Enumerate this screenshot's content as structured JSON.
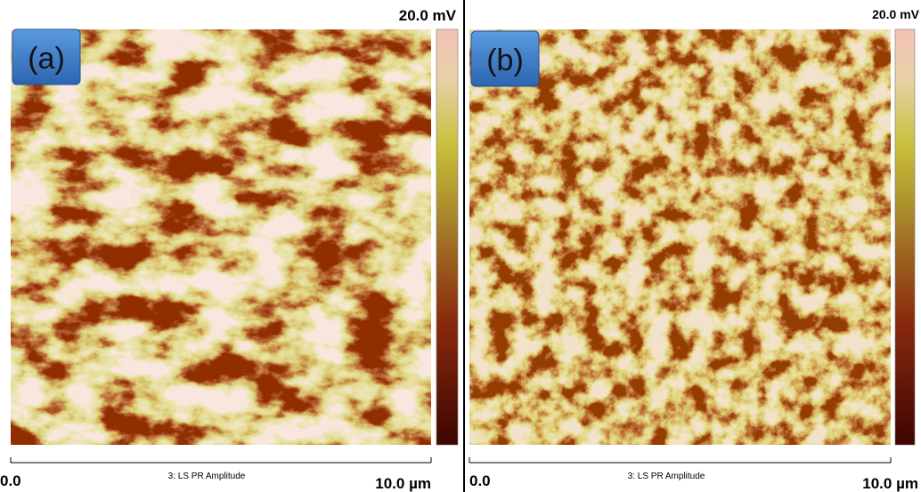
{
  "panels": [
    {
      "label": "(a)",
      "scale_max": "20.0 mV",
      "x_min": "0.0",
      "caption": "3: LS PR Amplitude",
      "x_max": "10.0 µm"
    },
    {
      "label": "(b)",
      "scale_max": "20.0 mV",
      "x_min": "0.0",
      "caption": "3: LS PR Amplitude",
      "x_max": "10.0 µm"
    }
  ]
}
